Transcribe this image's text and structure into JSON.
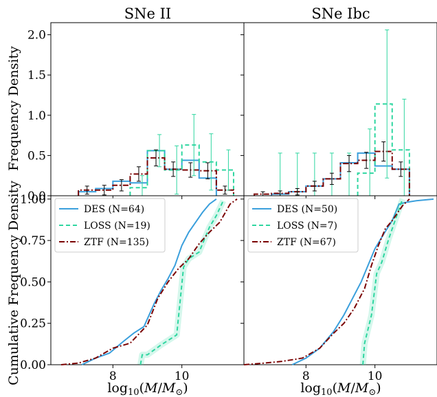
{
  "colors": {
    "DES": "#3a9fdc",
    "LOSS": "#2ed6a0",
    "ZTF": "#7a0000",
    "err": "#000000"
  },
  "chart_data": [
    {
      "panel": "top-left",
      "type": "histogram",
      "title": "SNe II",
      "ylabel": "Frequency Density",
      "xlim": [
        6.2,
        11.8
      ],
      "ylim": [
        0,
        2.15
      ],
      "yticks": [
        "0.0",
        "0.5",
        "1.0",
        "1.5",
        "2.0"
      ],
      "ytick_values": [
        0,
        0.5,
        1.0,
        1.5,
        2.0
      ],
      "series": [
        {
          "name": "DES",
          "style": "solid",
          "edges": [
            7.0,
            7.5,
            8.0,
            8.5,
            9.0,
            9.5,
            10.0,
            10.5,
            11.0
          ],
          "values": [
            0.05,
            0.09,
            0.18,
            0.16,
            0.56,
            0.33,
            0.44,
            0.22
          ]
        },
        {
          "name": "LOSS",
          "style": "dashed",
          "edges": [
            8.5,
            9.0,
            9.5,
            10.0,
            10.5,
            11.0,
            11.5
          ],
          "values": [
            0.1,
            0.56,
            0.32,
            0.63,
            0.42,
            0.32
          ],
          "err": [
            0.15,
            0.2,
            0.3,
            0.38,
            0.35,
            0.25
          ]
        },
        {
          "name": "ZTF",
          "style": "dashdot",
          "edges": [
            7.0,
            7.5,
            8.0,
            8.5,
            9.0,
            9.5,
            10.0,
            10.5,
            11.0,
            11.5
          ],
          "values": [
            0.07,
            0.07,
            0.13,
            0.27,
            0.47,
            0.33,
            0.32,
            0.31,
            0.07
          ],
          "err": [
            0.05,
            0.06,
            0.07,
            0.09,
            0.1,
            0.09,
            0.09,
            0.1,
            0.05
          ]
        }
      ]
    },
    {
      "panel": "top-right",
      "type": "histogram",
      "title": "SNe Ibc",
      "xlim": [
        6.2,
        11.8
      ],
      "ylim": [
        0,
        2.15
      ],
      "series": [
        {
          "name": "DES",
          "style": "solid",
          "edges": [
            7.0,
            7.5,
            8.0,
            8.5,
            9.0,
            9.5,
            10.0,
            10.5,
            11.0
          ],
          "values": [
            0.02,
            0.05,
            0.12,
            0.21,
            0.41,
            0.53,
            0.37,
            0.33
          ]
        },
        {
          "name": "LOSS",
          "style": "dashed",
          "edges": [
            9.5,
            10.0,
            10.5,
            11.0
          ],
          "values": [
            0.28,
            1.14,
            0.57
          ],
          "err": [
            0.55,
            0.92,
            0.63
          ]
        },
        {
          "name": "ZTF",
          "style": "dashdot",
          "edges": [
            6.5,
            7.0,
            7.5,
            8.0,
            8.5,
            9.0,
            9.5,
            10.0,
            10.5,
            11.0
          ],
          "values": [
            0.02,
            0.03,
            0.05,
            0.12,
            0.21,
            0.4,
            0.44,
            0.55,
            0.33
          ],
          "err": [
            0.03,
            0.03,
            0.04,
            0.06,
            0.07,
            0.1,
            0.1,
            0.12,
            0.09
          ]
        }
      ],
      "loss_ghost_err": [
        {
          "x": 7.25,
          "value": 0,
          "err": 0.53
        },
        {
          "x": 7.75,
          "value": 0,
          "err": 0.53
        },
        {
          "x": 8.25,
          "value": 0,
          "err": 0.53
        },
        {
          "x": 8.75,
          "value": 0,
          "err": 0.53
        },
        {
          "x": 9.25,
          "value": 0,
          "err": 0.53
        }
      ]
    },
    {
      "panel": "bottom-left",
      "type": "line",
      "ylabel": "Cumulative Frequency Density",
      "xlabel": "log10(M/M⊙)",
      "xlim": [
        6.2,
        11.8
      ],
      "ylim": [
        0,
        1.02
      ],
      "xticks": [
        "8",
        "10"
      ],
      "xtick_values": [
        8,
        10
      ],
      "yticks": [
        "0.00",
        "0.25",
        "0.50",
        "0.75",
        "1.00"
      ],
      "ytick_values": [
        0,
        0.25,
        0.5,
        0.75,
        1.0
      ],
      "legend": {
        "placement": "upper-left",
        "entries": [
          "DES (N=64)",
          "LOSS (N=19)",
          "ZTF (N=135)"
        ]
      },
      "series": [
        {
          "name": "DES",
          "style": "solid",
          "x": [
            7.1,
            7.5,
            7.9,
            8.3,
            8.6,
            8.9,
            9.2,
            9.4,
            9.6,
            9.8,
            10.0,
            10.2,
            10.4,
            10.6,
            10.8,
            11.0
          ],
          "y": [
            0.0,
            0.04,
            0.07,
            0.14,
            0.19,
            0.23,
            0.37,
            0.45,
            0.52,
            0.6,
            0.72,
            0.8,
            0.86,
            0.92,
            0.97,
            1.0
          ]
        },
        {
          "name": "LOSS",
          "style": "dashed",
          "x": [
            8.8,
            8.85,
            9.0,
            9.4,
            9.85,
            10.05,
            10.2,
            10.5,
            10.8,
            11.0,
            11.2
          ],
          "y": [
            0.0,
            0.06,
            0.06,
            0.12,
            0.18,
            0.59,
            0.64,
            0.68,
            0.83,
            0.9,
            0.99
          ]
        },
        {
          "name": "ZTF",
          "style": "dashdot",
          "x": [
            6.5,
            7.0,
            7.5,
            8.0,
            8.5,
            9.0,
            9.3,
            9.6,
            9.9,
            10.2,
            10.5,
            10.8,
            11.1,
            11.4,
            11.6
          ],
          "y": [
            0.0,
            0.01,
            0.04,
            0.1,
            0.13,
            0.24,
            0.4,
            0.5,
            0.58,
            0.64,
            0.73,
            0.8,
            0.86,
            0.97,
            1.0
          ]
        }
      ]
    },
    {
      "panel": "bottom-right",
      "type": "line",
      "xlabel": "log10(M/M⊙)",
      "xlim": [
        6.2,
        11.8
      ],
      "ylim": [
        0,
        1.02
      ],
      "xticks": [
        "8",
        "10"
      ],
      "xtick_values": [
        8,
        10
      ],
      "legend": {
        "placement": "upper-left",
        "entries": [
          "DES (N=50)",
          "LOSS (N=7)",
          "ZTF (N=67)"
        ]
      },
      "series": [
        {
          "name": "DES",
          "style": "solid",
          "x": [
            7.6,
            8.0,
            8.4,
            8.8,
            9.1,
            9.4,
            9.6,
            9.8,
            10.0,
            10.2,
            10.5,
            10.7,
            10.9,
            11.2,
            11.7
          ],
          "y": [
            0.0,
            0.04,
            0.1,
            0.2,
            0.3,
            0.42,
            0.5,
            0.6,
            0.7,
            0.77,
            0.87,
            0.97,
            0.98,
            0.99,
            1.0
          ]
        },
        {
          "name": "LOSS",
          "style": "dashed",
          "x": [
            9.65,
            9.7,
            9.9,
            10.05,
            10.2,
            10.4,
            10.6,
            10.8
          ],
          "y": [
            0.0,
            0.13,
            0.3,
            0.55,
            0.62,
            0.76,
            0.88,
            1.0
          ]
        },
        {
          "name": "ZTF",
          "style": "dashdot",
          "x": [
            6.2,
            6.8,
            7.3,
            7.9,
            8.4,
            8.8,
            9.1,
            9.4,
            9.7,
            9.9,
            10.1,
            10.3,
            10.5,
            10.8,
            11.0
          ],
          "y": [
            0.0,
            0.01,
            0.02,
            0.04,
            0.1,
            0.19,
            0.25,
            0.34,
            0.46,
            0.6,
            0.72,
            0.82,
            0.87,
            0.96,
            1.0
          ]
        }
      ]
    }
  ]
}
